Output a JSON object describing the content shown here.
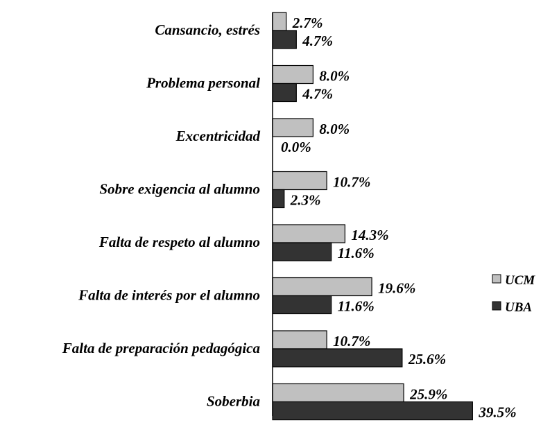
{
  "chart_data": {
    "type": "bar",
    "orientation": "horizontal",
    "categories": [
      "Cansancio, estrés",
      "Problema personal",
      "Excentricidad",
      "Sobre exigencia al alumno",
      "Falta de respeto al alumno",
      "Falta de interés por el alumno",
      "Falta de preparación pedagógica",
      "Soberbia"
    ],
    "series": [
      {
        "name": "UCM",
        "color": "#c0c0c0",
        "values": [
          2.7,
          8.0,
          8.0,
          10.7,
          14.3,
          19.6,
          10.7,
          25.9
        ],
        "labels": [
          "2.7%",
          "8.0%",
          "8.0%",
          "10.7%",
          "14.3%",
          "19.6%",
          "10.7%",
          "25.9%"
        ]
      },
      {
        "name": "UBA",
        "color": "#333333",
        "values": [
          4.7,
          4.7,
          0.0,
          2.3,
          11.6,
          11.6,
          25.6,
          39.5
        ],
        "labels": [
          "4.7%",
          "4.7%",
          "0.0%",
          "2.3%",
          "11.6%",
          "11.6%",
          "25.6%",
          "39.5%"
        ]
      }
    ],
    "xlim": [
      0,
      40
    ],
    "grid": false,
    "legend_position": "right"
  }
}
